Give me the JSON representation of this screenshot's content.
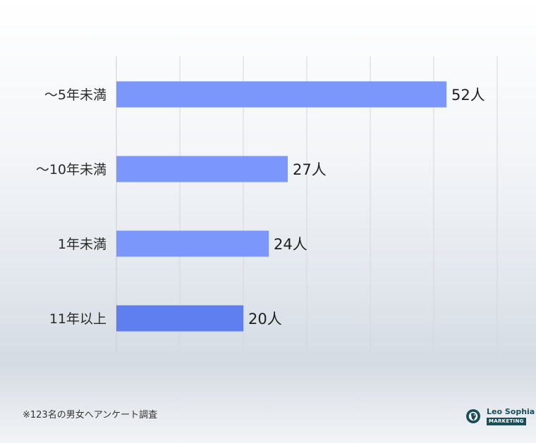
{
  "chart_data": {
    "type": "bar",
    "orientation": "horizontal",
    "categories": [
      "〜5年未満",
      "〜10年未満",
      "1年未満",
      "11年以上"
    ],
    "values": [
      52,
      27,
      24,
      20
    ],
    "value_suffix": "人",
    "xlim": [
      0,
      60
    ],
    "grid": true,
    "colors": [
      "#7b97fb",
      "#7b97fb",
      "#7b97fb",
      "#5f7ef0"
    ]
  },
  "footnote": "※123名の男女へアンケート調査",
  "logo": {
    "name": "Leo Sophia",
    "sub": "MARKETING"
  }
}
